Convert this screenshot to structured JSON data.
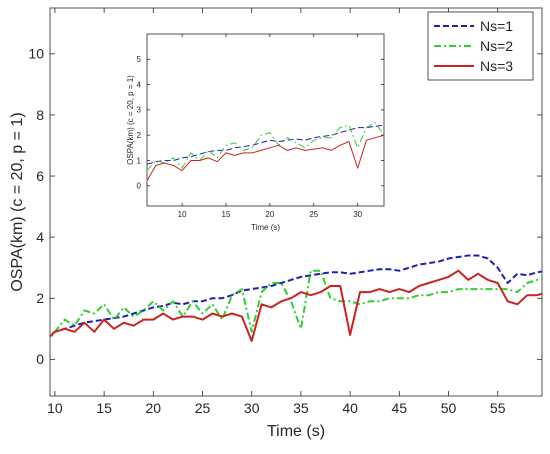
{
  "chart_data": [
    {
      "type": "line",
      "xlabel": "Time (s)",
      "ylabel": "OSPA(km) (c = 20, p = 1)",
      "xlim": [
        9.5,
        59.5
      ],
      "ylim": [
        -1.2,
        11.5
      ],
      "x_ticks": [
        "10",
        "15",
        "20",
        "25",
        "30",
        "35",
        "40",
        "45",
        "50",
        "55"
      ],
      "y_ticks": [
        "0",
        "2",
        "4",
        "6",
        "8",
        "10"
      ],
      "grid": false,
      "legend_position": "top-right",
      "x": [
        9,
        10,
        11,
        12,
        13,
        14,
        15,
        16,
        17,
        18,
        19,
        20,
        21,
        22,
        23,
        24,
        25,
        26,
        27,
        28,
        29,
        30,
        31,
        32,
        33,
        34,
        35,
        36,
        37,
        38,
        39,
        40,
        41,
        42,
        43,
        44,
        45,
        46,
        47,
        48,
        49,
        50,
        51,
        52,
        53,
        54,
        55,
        56,
        57,
        58,
        59,
        60
      ],
      "series": [
        {
          "name": "Ns=1",
          "color": "#1f1fb0",
          "style": "dashed",
          "values": [
            0.7,
            0.9,
            1.0,
            1.1,
            1.2,
            1.25,
            1.3,
            1.35,
            1.4,
            1.5,
            1.6,
            1.7,
            1.75,
            1.85,
            1.8,
            1.9,
            1.9,
            2.0,
            2.0,
            2.1,
            2.25,
            2.3,
            2.35,
            2.4,
            2.5,
            2.6,
            2.7,
            2.75,
            2.8,
            2.85,
            2.85,
            2.8,
            2.85,
            2.9,
            2.95,
            2.95,
            2.9,
            3.0,
            3.1,
            3.15,
            3.2,
            3.3,
            3.35,
            3.4,
            3.4,
            3.3,
            3.0,
            2.5,
            2.8,
            2.75,
            2.85,
            2.9
          ]
        },
        {
          "name": "Ns=2",
          "color": "#33cc33",
          "style": "dashdot",
          "values": [
            0.5,
            0.9,
            1.3,
            1.1,
            1.6,
            1.5,
            1.8,
            1.3,
            1.7,
            1.4,
            1.6,
            1.9,
            1.6,
            1.9,
            1.4,
            1.9,
            1.5,
            1.8,
            1.3,
            2.1,
            2.3,
            0.9,
            2.2,
            2.5,
            2.5,
            1.9,
            1.0,
            2.9,
            2.9,
            2.0,
            1.9,
            1.9,
            1.8,
            1.9,
            1.9,
            2.0,
            2.0,
            2.0,
            2.1,
            2.1,
            2.2,
            2.2,
            2.3,
            2.3,
            2.3,
            2.3,
            2.3,
            2.3,
            2.2,
            2.5,
            2.6,
            2.65
          ]
        },
        {
          "name": "Ns=3",
          "color": "#cc2222",
          "style": "solid",
          "values": [
            0.6,
            0.9,
            1.0,
            0.9,
            1.2,
            0.9,
            1.3,
            1.0,
            1.2,
            1.1,
            1.3,
            1.3,
            1.5,
            1.3,
            1.4,
            1.4,
            1.3,
            1.5,
            1.4,
            1.5,
            1.4,
            0.6,
            1.8,
            1.7,
            1.9,
            2.0,
            2.2,
            2.1,
            2.2,
            2.4,
            2.4,
            0.8,
            2.2,
            2.2,
            2.3,
            2.2,
            2.3,
            2.2,
            2.4,
            2.5,
            2.6,
            2.7,
            2.9,
            2.6,
            2.8,
            2.6,
            2.5,
            1.9,
            1.8,
            2.1,
            2.1,
            2.2
          ]
        }
      ]
    },
    {
      "type": "line",
      "xlabel": "Time (s)",
      "ylabel": "OSPA(km) (c = 20, p = 1)",
      "xlim": [
        6,
        33
      ],
      "ylim": [
        -0.8,
        6
      ],
      "x_ticks": [
        "10",
        "15",
        "20",
        "25",
        "30"
      ],
      "y_ticks": [
        "0",
        "1",
        "2",
        "3",
        "4",
        "5"
      ],
      "grid": false,
      "x": [
        6,
        7,
        8,
        9,
        10,
        11,
        12,
        13,
        14,
        15,
        16,
        17,
        18,
        19,
        20,
        21,
        22,
        23,
        24,
        25,
        26,
        27,
        28,
        29,
        30,
        31,
        32,
        33
      ],
      "series": [
        {
          "name": "Ns=1",
          "color": "#1f1fb0",
          "style": "dashed",
          "values": [
            0.85,
            0.95,
            1.0,
            1.0,
            1.1,
            1.15,
            1.25,
            1.35,
            1.4,
            1.4,
            1.5,
            1.55,
            1.6,
            1.7,
            1.8,
            1.75,
            1.8,
            1.85,
            1.8,
            1.9,
            1.95,
            2.0,
            2.1,
            2.2,
            2.3,
            2.3,
            2.35,
            2.4
          ]
        },
        {
          "name": "Ns=2",
          "color": "#33cc33",
          "style": "dashdot",
          "values": [
            0.6,
            1.0,
            0.9,
            1.1,
            0.7,
            1.3,
            1.0,
            1.4,
            1.1,
            1.6,
            1.7,
            1.4,
            1.5,
            2.0,
            2.1,
            1.6,
            1.9,
            1.7,
            1.5,
            1.8,
            1.9,
            1.9,
            2.3,
            2.4,
            1.5,
            2.3,
            2.5,
            2.0
          ]
        },
        {
          "name": "Ns=3",
          "color": "#cc2222",
          "style": "solid",
          "values": [
            0.2,
            0.8,
            0.9,
            0.8,
            0.6,
            1.0,
            1.0,
            1.1,
            0.95,
            1.3,
            1.2,
            1.3,
            1.3,
            1.4,
            1.5,
            1.6,
            1.4,
            1.5,
            1.4,
            1.45,
            1.5,
            1.4,
            1.6,
            1.75,
            0.7,
            1.8,
            1.9,
            2.0
          ]
        }
      ]
    }
  ]
}
